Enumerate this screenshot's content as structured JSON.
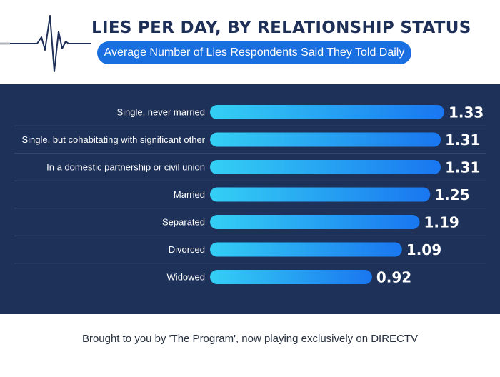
{
  "header": {
    "title": "LIES PER DAY, BY RELATIONSHIP STATUS",
    "subtitle": "Average Number of Lies Respondents Said They Told Daily"
  },
  "chart_data": {
    "type": "bar",
    "orientation": "horizontal",
    "title": "LIES PER DAY, BY RELATIONSHIP STATUS",
    "subtitle": "Average Number of Lies Respondents Said They Told Daily",
    "categories": [
      "Single, never married",
      "Single, but cohabitating with significant other",
      "In a domestic partnership or civil union",
      "Married",
      "Separated",
      "Divorced",
      "Widowed"
    ],
    "values": [
      1.33,
      1.31,
      1.31,
      1.25,
      1.19,
      1.09,
      0.92
    ],
    "value_labels": [
      "1.33",
      "1.31",
      "1.31",
      "1.25",
      "1.19",
      "1.09",
      "0.92"
    ],
    "xlim": [
      0,
      1.33
    ],
    "grid": false,
    "colors": {
      "bar_start": "#34d0f4",
      "bar_end": "#1976f0",
      "background": "#1e3158",
      "divider": "#3a4e76"
    }
  },
  "footer": {
    "text": "Brought to you by 'The Program', now playing exclusively on DIRECTV"
  }
}
